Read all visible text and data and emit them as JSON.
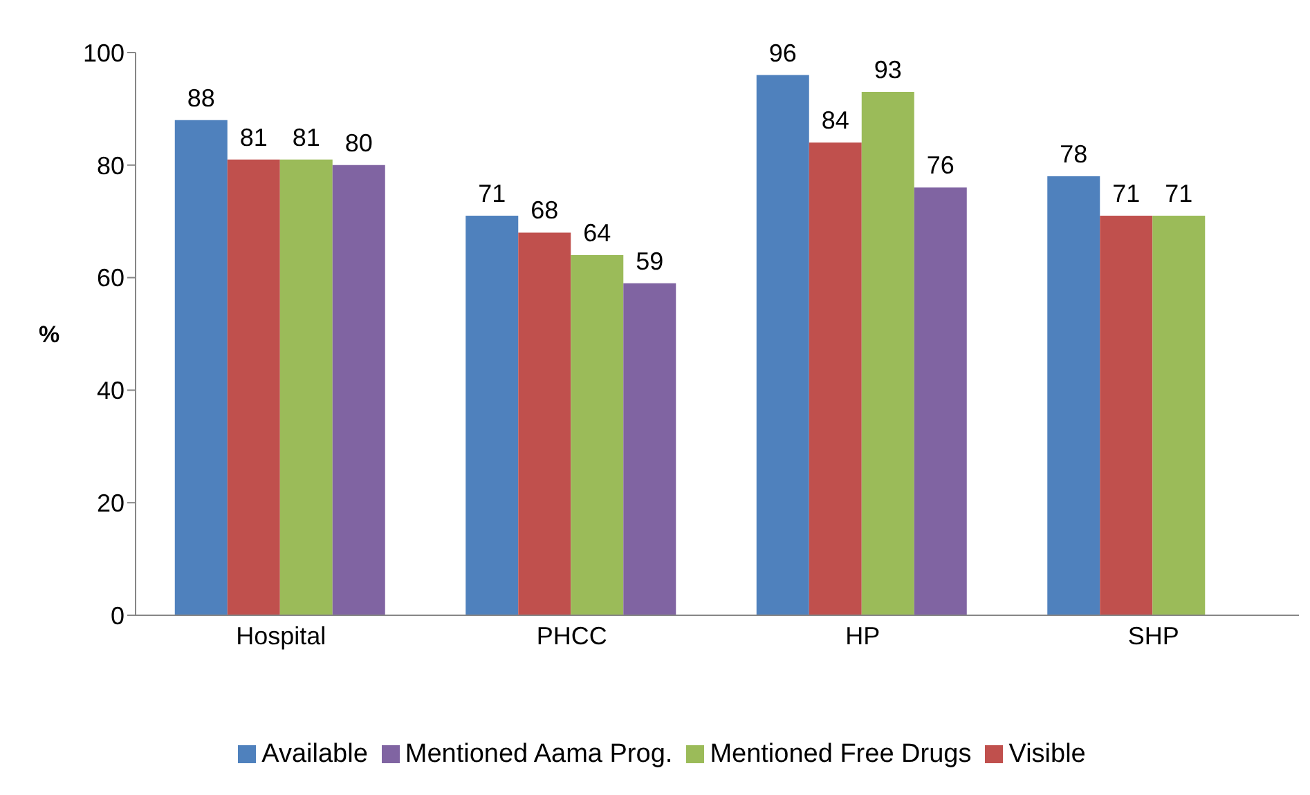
{
  "chart_data": {
    "type": "bar",
    "ylabel": "%",
    "categories": [
      "Hospital",
      "PHCC",
      "HP",
      "SHP"
    ],
    "series": [
      {
        "name": "Available",
        "color": "#4f81bd",
        "values": [
          88,
          71,
          96,
          78
        ]
      },
      {
        "name": "Visible",
        "color": "#c0504d",
        "values": [
          81,
          68,
          84,
          71
        ]
      },
      {
        "name": "Mentioned Free Drugs",
        "color": "#9bbb59",
        "values": [
          81,
          64,
          93,
          71
        ]
      },
      {
        "name": "Mentioned Aama Prog.",
        "color": "#8064a2",
        "values": [
          80,
          59,
          76,
          null
        ]
      }
    ],
    "ylim": [
      0,
      100
    ],
    "yticks": [
      0,
      20,
      40,
      60,
      80,
      100
    ],
    "data_labels": true,
    "legend": "bottom",
    "grid": false
  }
}
